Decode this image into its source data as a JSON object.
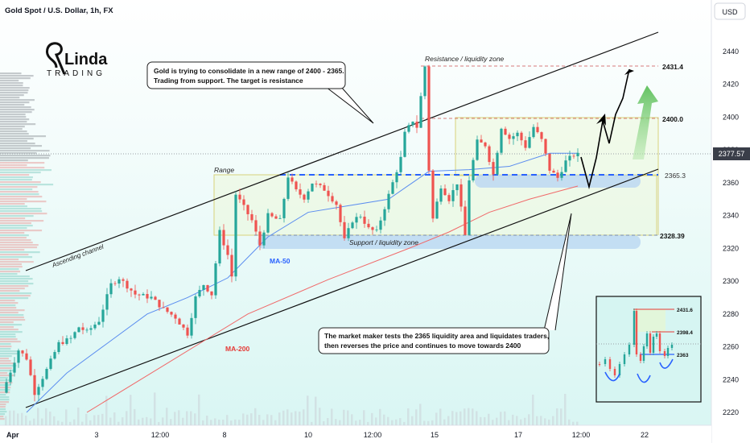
{
  "header": {
    "title": "Gold Spot / U.S. Dollar, 1h, FX",
    "currency_button": "USD"
  },
  "logo": {
    "line1": "Linda",
    "line2": "TRADING"
  },
  "callouts": {
    "top": [
      "Gold is trying to consolidate in a new range of 2400 - 2365.",
      "Trading from support. The target is resistance"
    ],
    "bottom": [
      "The market maker tests the 2365 liquidity area and liquidates traders,",
      "then reverses the price and continues to move towards 2400"
    ]
  },
  "annotations": {
    "resistance_zone": "Resistance / liquidity zone",
    "support_zone": "Support / liquidity zone",
    "range": "Range",
    "ascending_channel": "Ascending channel",
    "ma50": "MA-50",
    "ma200": "MA-200"
  },
  "level_labels": {
    "l2431": "2431.4",
    "l2400": "2400.0",
    "l2365": "2365.3",
    "l2328": "2328.39",
    "current": "2377.57"
  },
  "inset": {
    "labels": [
      "2431.6",
      "2398.4",
      "2363"
    ]
  },
  "colors": {
    "up": "#26a69a",
    "down": "#ef5350",
    "ma50": "#5b8def",
    "ma200": "#f06a6a",
    "zone": "#bcd8f2",
    "target_arrow": "#6cc36a"
  },
  "chart_data": {
    "type": "candlestick",
    "symbol": "Gold Spot / U.S. Dollar",
    "timeframe": "1h",
    "y_axis": {
      "ticks": [
        2220,
        2240,
        2260,
        2280,
        2300,
        2320,
        2340,
        2360,
        2380,
        2400,
        2420,
        2440
      ],
      "range": [
        2215,
        2458
      ]
    },
    "x_axis": {
      "ticks": [
        "Apr",
        "3",
        "12:00",
        "8",
        "10",
        "12:00",
        "15",
        "17",
        "12:00",
        "22"
      ]
    },
    "levels": [
      2431.4,
      2400.0,
      2365.3,
      2328.39
    ],
    "current_price": 2377.57,
    "price_path": [
      {
        "t": 0,
        "p": 2232
      },
      {
        "t": 4,
        "p": 2258
      },
      {
        "t": 6,
        "p": 2253
      },
      {
        "t": 8,
        "p": 2232
      },
      {
        "t": 11,
        "p": 2246
      },
      {
        "t": 14,
        "p": 2262
      },
      {
        "t": 17,
        "p": 2265
      },
      {
        "t": 19,
        "p": 2272
      },
      {
        "t": 21,
        "p": 2269
      },
      {
        "t": 24,
        "p": 2276
      },
      {
        "t": 27,
        "p": 2298
      },
      {
        "t": 29,
        "p": 2302
      },
      {
        "t": 33,
        "p": 2292
      },
      {
        "t": 37,
        "p": 2290
      },
      {
        "t": 40,
        "p": 2283
      },
      {
        "t": 43,
        "p": 2278
      },
      {
        "t": 46,
        "p": 2268
      },
      {
        "t": 48,
        "p": 2290
      },
      {
        "t": 50,
        "p": 2298
      },
      {
        "t": 52,
        "p": 2292
      },
      {
        "t": 54,
        "p": 2330
      },
      {
        "t": 56,
        "p": 2316
      },
      {
        "t": 57,
        "p": 2303
      },
      {
        "t": 58,
        "p": 2353
      },
      {
        "t": 60,
        "p": 2345
      },
      {
        "t": 62,
        "p": 2337
      },
      {
        "t": 64,
        "p": 2322
      },
      {
        "t": 66,
        "p": 2340
      },
      {
        "t": 69,
        "p": 2337
      },
      {
        "t": 71,
        "p": 2364
      },
      {
        "t": 73,
        "p": 2355
      },
      {
        "t": 75,
        "p": 2351
      },
      {
        "t": 77,
        "p": 2360
      },
      {
        "t": 80,
        "p": 2356
      },
      {
        "t": 83,
        "p": 2347
      },
      {
        "t": 85,
        "p": 2325
      },
      {
        "t": 87,
        "p": 2337
      },
      {
        "t": 89,
        "p": 2340
      },
      {
        "t": 91,
        "p": 2332
      },
      {
        "t": 93,
        "p": 2330
      },
      {
        "t": 95,
        "p": 2345
      },
      {
        "t": 97,
        "p": 2360
      },
      {
        "t": 99,
        "p": 2375
      },
      {
        "t": 100,
        "p": 2390
      },
      {
        "t": 102,
        "p": 2398
      },
      {
        "t": 103,
        "p": 2394
      },
      {
        "t": 105,
        "p": 2431
      },
      {
        "t": 106,
        "p": 2368
      },
      {
        "t": 107,
        "p": 2338
      },
      {
        "t": 109,
        "p": 2358
      },
      {
        "t": 111,
        "p": 2350
      },
      {
        "t": 113,
        "p": 2360
      },
      {
        "t": 115,
        "p": 2328
      },
      {
        "t": 116,
        "p": 2362
      },
      {
        "t": 118,
        "p": 2385
      },
      {
        "t": 120,
        "p": 2383
      },
      {
        "t": 122,
        "p": 2365
      },
      {
        "t": 124,
        "p": 2394
      },
      {
        "t": 126,
        "p": 2387
      },
      {
        "t": 128,
        "p": 2390
      },
      {
        "t": 130,
        "p": 2382
      },
      {
        "t": 132,
        "p": 2394
      },
      {
        "t": 134,
        "p": 2386
      },
      {
        "t": 136,
        "p": 2368
      },
      {
        "t": 138,
        "p": 2363
      },
      {
        "t": 140,
        "p": 2373
      },
      {
        "t": 142,
        "p": 2377
      }
    ],
    "ma50": [
      {
        "t": 5,
        "p": 2220
      },
      {
        "t": 15,
        "p": 2244
      },
      {
        "t": 25,
        "p": 2262
      },
      {
        "t": 35,
        "p": 2280
      },
      {
        "t": 45,
        "p": 2290
      },
      {
        "t": 55,
        "p": 2302
      },
      {
        "t": 65,
        "p": 2327
      },
      {
        "t": 75,
        "p": 2342
      },
      {
        "t": 85,
        "p": 2346
      },
      {
        "t": 95,
        "p": 2350
      },
      {
        "t": 105,
        "p": 2367
      },
      {
        "t": 115,
        "p": 2368
      },
      {
        "t": 125,
        "p": 2370
      },
      {
        "t": 135,
        "p": 2378
      },
      {
        "t": 142,
        "p": 2378
      }
    ],
    "ma200": [
      {
        "t": 20,
        "p": 2220
      },
      {
        "t": 40,
        "p": 2250
      },
      {
        "t": 60,
        "p": 2280
      },
      {
        "t": 80,
        "p": 2301
      },
      {
        "t": 100,
        "p": 2320
      },
      {
        "t": 110,
        "p": 2330
      },
      {
        "t": 120,
        "p": 2342
      },
      {
        "t": 130,
        "p": 2350
      },
      {
        "t": 142,
        "p": 2358
      }
    ]
  }
}
